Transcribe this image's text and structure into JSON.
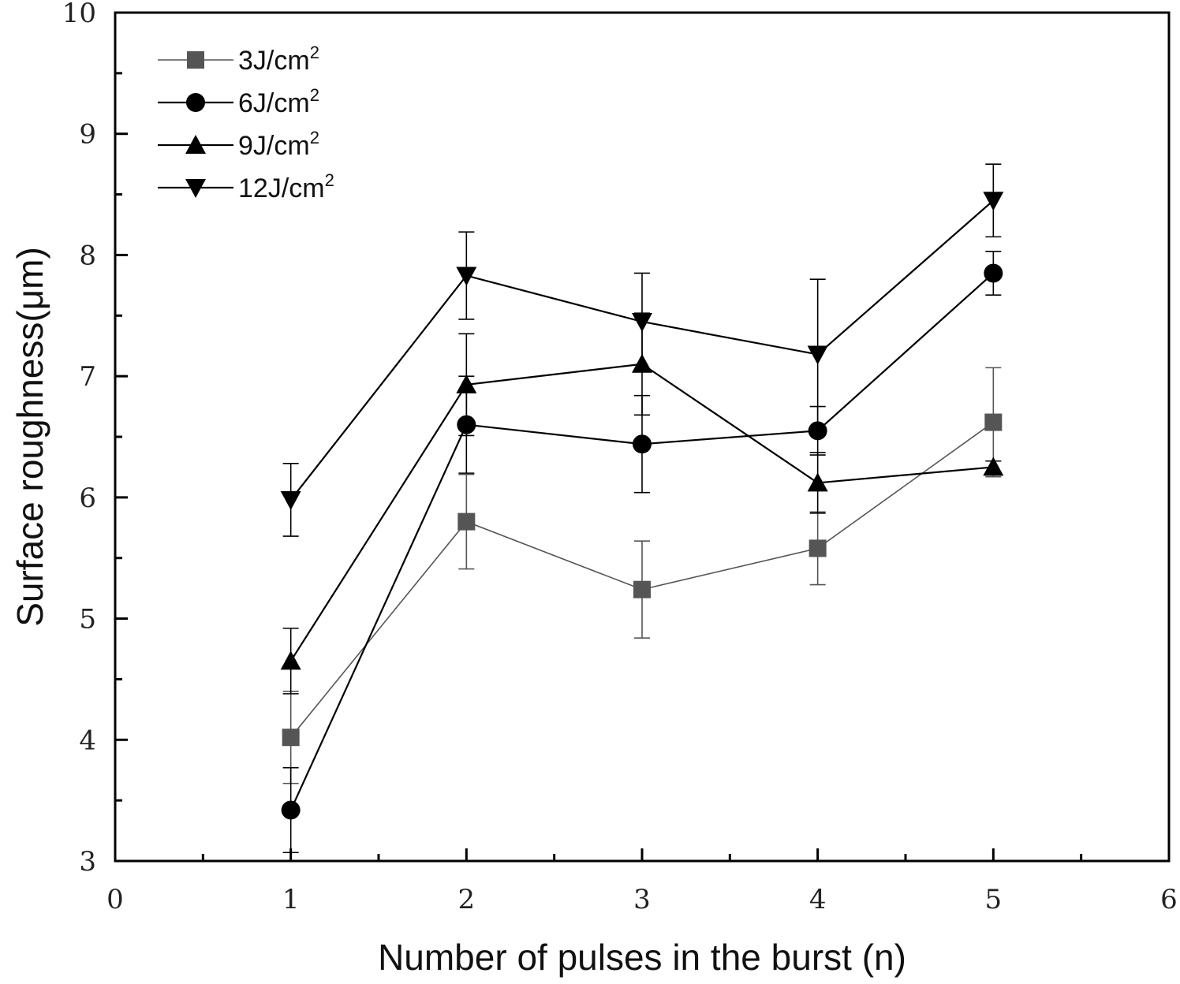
{
  "chart_data": {
    "type": "line",
    "xlabel": "Number of pulses in the burst (n)",
    "ylabel": "Surface roughness(μm)",
    "xlim": [
      0,
      6
    ],
    "ylim": [
      3,
      10
    ],
    "x_ticks": [
      "0",
      "1",
      "2",
      "3",
      "4",
      "5",
      "6"
    ],
    "y_ticks": [
      "3",
      "4",
      "5",
      "6",
      "7",
      "8",
      "9",
      "10"
    ],
    "x": [
      1,
      2,
      3,
      4,
      5
    ],
    "legend_position": "top-left",
    "grid": false,
    "series": [
      {
        "name_base": "3J/cm",
        "name_sup": "2",
        "marker": "square",
        "color": "#555555",
        "values": [
          4.02,
          5.8,
          5.24,
          5.58,
          6.62
        ],
        "errors": [
          0.38,
          0.39,
          0.4,
          0.3,
          0.45
        ]
      },
      {
        "name_base": "6J/cm",
        "name_sup": "2",
        "marker": "circle",
        "color": "#000000",
        "values": [
          3.42,
          6.6,
          6.44,
          6.55,
          7.85
        ],
        "errors": [
          0.35,
          0.4,
          0.4,
          0.2,
          0.18
        ]
      },
      {
        "name_base": "9J/cm",
        "name_sup": "2",
        "marker": "triangle-up",
        "color": "#000000",
        "values": [
          4.65,
          6.93,
          7.1,
          6.12,
          6.25
        ],
        "errors": [
          0.27,
          0.42,
          0.42,
          0.25,
          0.05
        ]
      },
      {
        "name_base": "12J/cm",
        "name_sup": "2",
        "marker": "triangle-down",
        "color": "#000000",
        "values": [
          5.98,
          7.83,
          7.45,
          7.18,
          8.45
        ],
        "errors": [
          0.3,
          0.36,
          0.4,
          0.62,
          0.3
        ]
      }
    ]
  }
}
